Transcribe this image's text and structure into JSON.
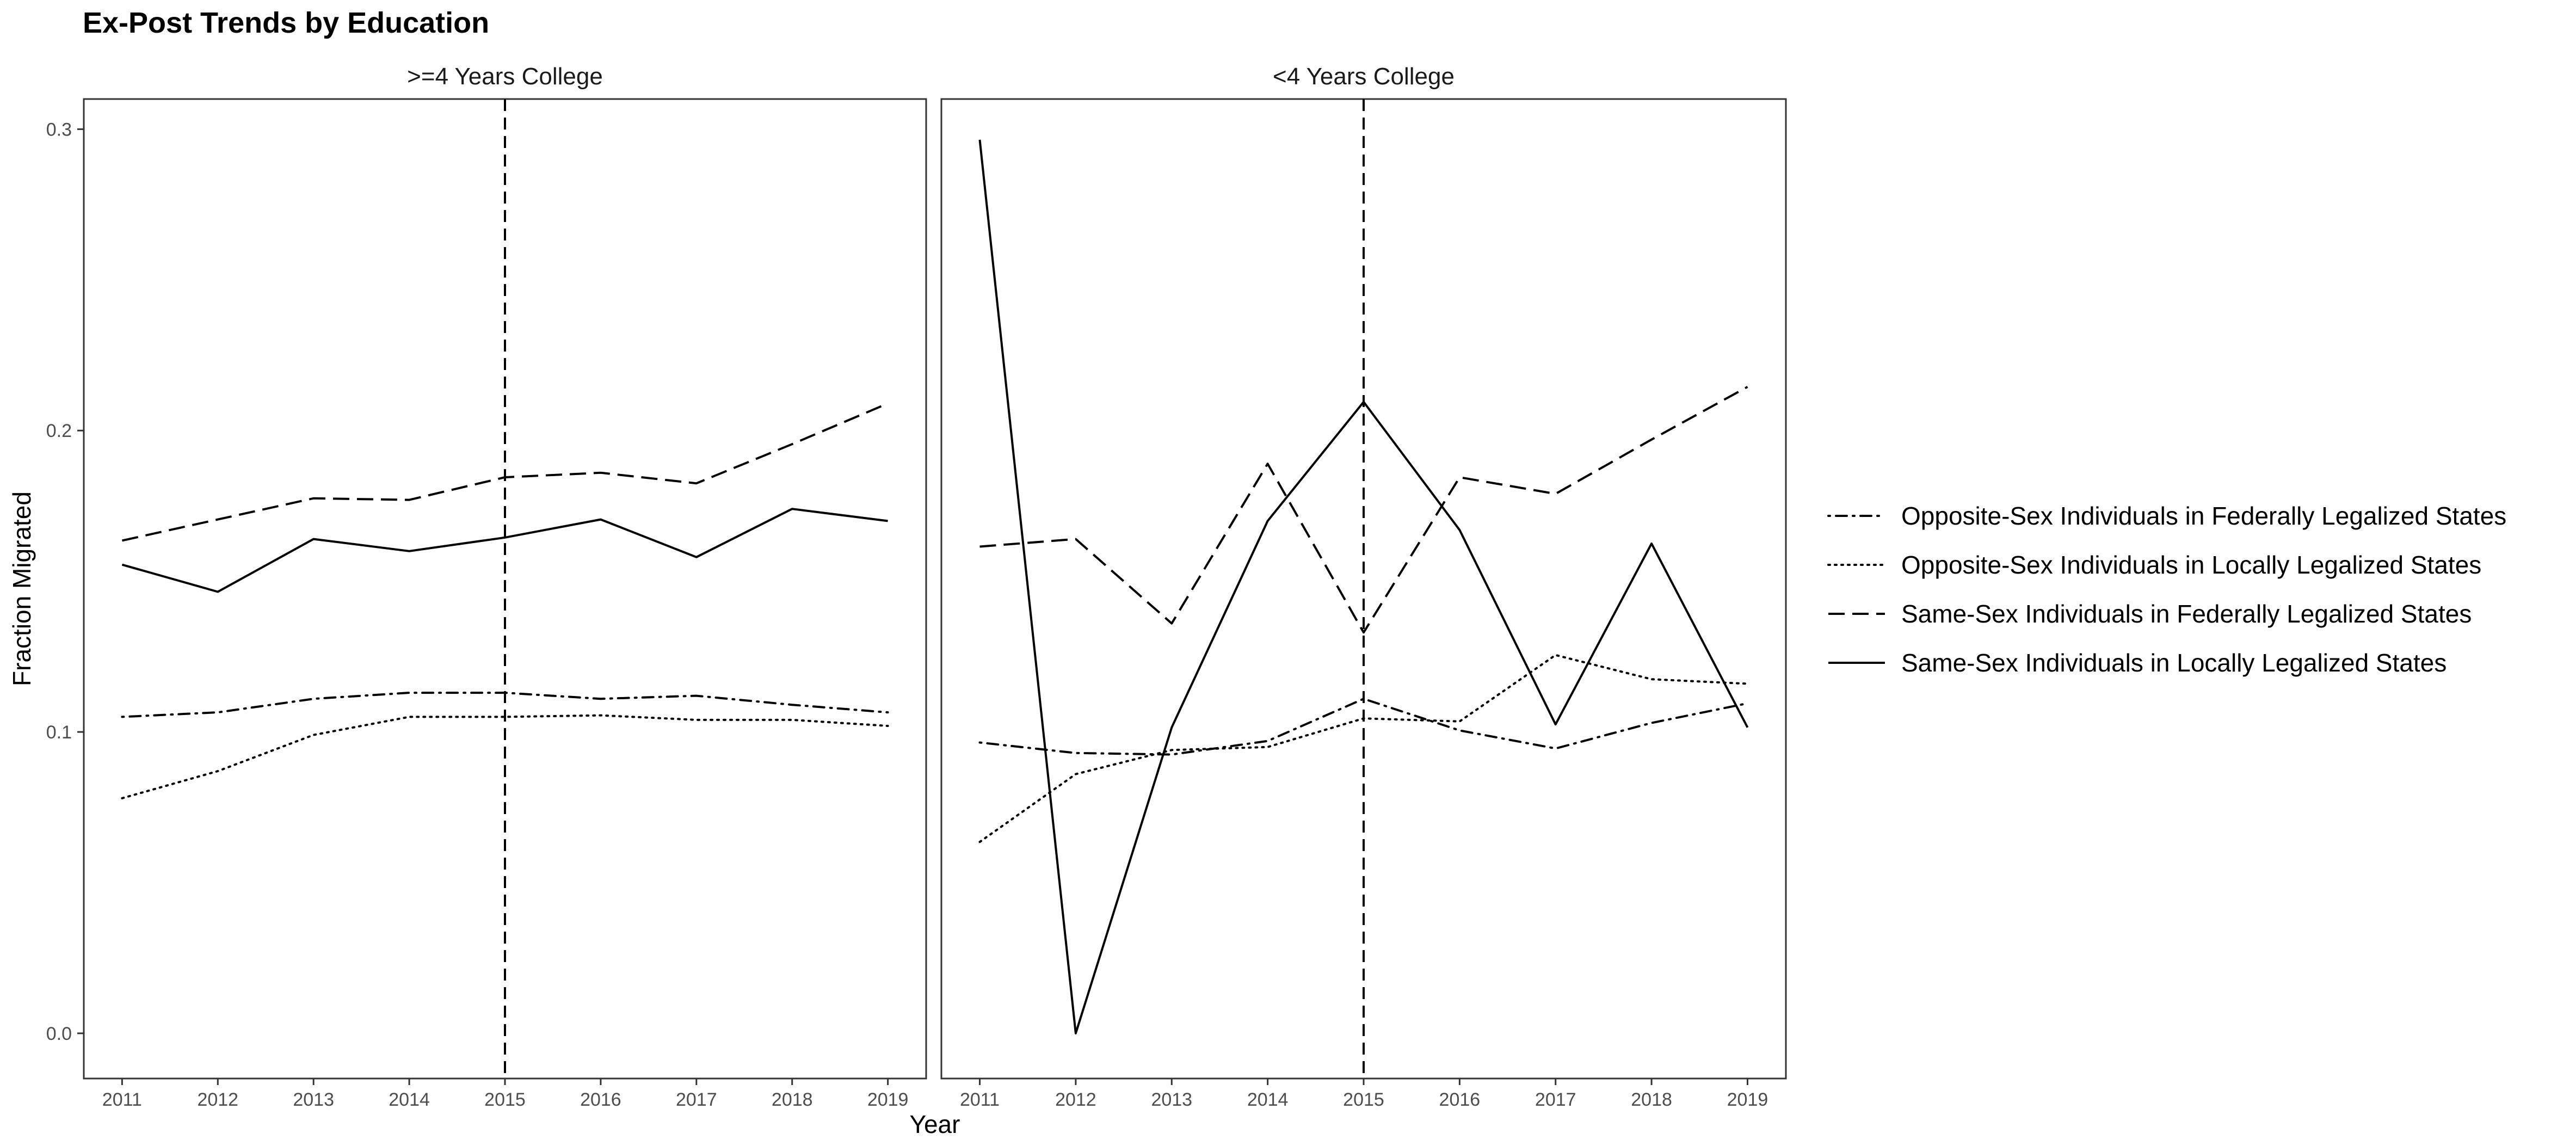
{
  "chart_data": {
    "type": "line",
    "title": "Ex-Post Trends by Education",
    "xlabel": "Year",
    "ylabel": "Fraction Migrated",
    "x": [
      2011,
      2012,
      2013,
      2014,
      2015,
      2016,
      2017,
      2018,
      2019
    ],
    "ylim": [
      -0.015,
      0.31
    ],
    "yticks": [
      0.0,
      0.1,
      0.2,
      0.3
    ],
    "ytick_labels": [
      "0.0",
      "0.1",
      "0.2",
      "0.3"
    ],
    "xlim": [
      2010.6,
      2019.4
    ],
    "vline_x": 2015,
    "grid": false,
    "legend_position": "right",
    "styles": {
      "line_color": "#000000",
      "frame_color": "#333333",
      "tick_label_color": "#4d4d4d"
    },
    "series_styles": [
      "dotdash",
      "dotted",
      "dashed",
      "solid"
    ],
    "panels": [
      {
        "strip_label": ">=4 Years College",
        "series": [
          {
            "name": "Opposite-Sex Individuals in Federally Legalized States",
            "values": [
              0.105,
              0.1065,
              0.111,
              0.113,
              0.113,
              0.111,
              0.112,
              0.109,
              0.1065
            ]
          },
          {
            "name": "Opposite-Sex Individuals in Locally Legalized States",
            "values": [
              0.078,
              0.087,
              0.099,
              0.105,
              0.105,
              0.1055,
              0.104,
              0.104,
              0.102
            ]
          },
          {
            "name": "Same-Sex Individuals in Federally Legalized States",
            "values": [
              0.1635,
              0.1705,
              0.1775,
              0.177,
              0.1845,
              0.186,
              0.1825,
              0.1955,
              0.209
            ]
          },
          {
            "name": "Same-Sex Individuals in Locally Legalized States",
            "values": [
              0.1555,
              0.1465,
              0.164,
              0.16,
              0.1645,
              0.1705,
              0.158,
              0.174,
              0.17
            ]
          }
        ]
      },
      {
        "strip_label": "<4 Years College",
        "series": [
          {
            "name": "Opposite-Sex Individuals in Federally Legalized States",
            "values": [
              0.0965,
              0.093,
              0.0925,
              0.097,
              0.111,
              0.1005,
              0.0945,
              0.103,
              0.1095
            ]
          },
          {
            "name": "Opposite-Sex Individuals in Locally Legalized States",
            "values": [
              0.0635,
              0.086,
              0.094,
              0.095,
              0.1045,
              0.1035,
              0.1255,
              0.1175,
              0.116
            ]
          },
          {
            "name": "Same-Sex Individuals in Federally Legalized States",
            "values": [
              0.1615,
              0.164,
              0.136,
              0.189,
              0.133,
              0.1845,
              0.179,
              0.197,
              0.2145
            ]
          },
          {
            "name": "Same-Sex Individuals in Locally Legalized States",
            "values": [
              0.2965,
              0.0,
              0.1015,
              0.17,
              0.2095,
              0.167,
              0.1025,
              0.1625,
              0.1015
            ]
          }
        ]
      }
    ],
    "legend_entries": [
      "Opposite-Sex Individuals in Federally Legalized States",
      "Opposite-Sex Individuals in Locally Legalized States",
      "Same-Sex Individuals in Federally Legalized States",
      "Same-Sex Individuals in Locally Legalized States"
    ]
  }
}
